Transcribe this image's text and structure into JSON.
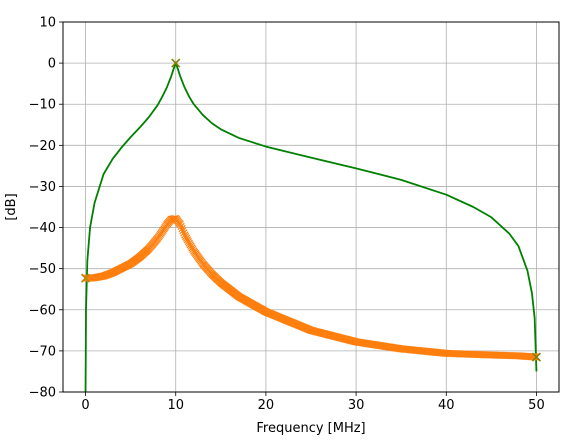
{
  "chart_data": {
    "type": "line",
    "xlabel": "Frequency [MHz]",
    "ylabel": "[dB]",
    "xlim": [
      -2.5,
      52.5
    ],
    "ylim": [
      -80,
      10
    ],
    "x_ticks": [
      0,
      10,
      20,
      30,
      40,
      50
    ],
    "y_ticks": [
      10,
      0,
      -10,
      -20,
      -30,
      -40,
      -50,
      -60,
      -70,
      -80
    ],
    "grid": true,
    "series": [
      {
        "style": "line",
        "color": "#008000",
        "x": [
          0,
          0.05,
          0.2,
          0.5,
          1,
          2,
          3,
          4,
          5,
          6,
          7,
          8,
          8.5,
          9,
          9.5,
          9.8,
          10,
          10.2,
          10.5,
          11,
          11.5,
          12,
          13,
          14,
          15,
          17,
          20,
          25,
          30,
          35,
          40,
          43,
          45,
          47,
          48,
          49,
          49.5,
          49.8,
          50
        ],
        "y": [
          -80,
          -60,
          -48,
          -40,
          -34,
          -27,
          -23.3,
          -20.5,
          -18,
          -15.7,
          -13.2,
          -10.2,
          -8.2,
          -6,
          -3.2,
          -1.2,
          0,
          -1.2,
          -3.2,
          -6,
          -8.2,
          -10,
          -12.6,
          -14.6,
          -16.1,
          -18.2,
          -20.3,
          -23,
          -25.6,
          -28.4,
          -32,
          -35,
          -37.5,
          -41.5,
          -44.5,
          -50.5,
          -56,
          -62,
          -75
        ]
      },
      {
        "style": "cross",
        "color": "#ff7f0e",
        "x": [
          0,
          0.5,
          1,
          2,
          3,
          4,
          5,
          6,
          7,
          8,
          8.5,
          9,
          9.5,
          10,
          10.5,
          11,
          11.5,
          12,
          13,
          14,
          15,
          17,
          20,
          25,
          30,
          35,
          40,
          45,
          48,
          50
        ],
        "y": [
          -52.3,
          -52.3,
          -52.2,
          -51.8,
          -51,
          -49.9,
          -48.8,
          -47.2,
          -45.2,
          -42.6,
          -41,
          -39.3,
          -38,
          -37.8,
          -39.2,
          -41.8,
          -43.8,
          -45.7,
          -48.8,
          -51.3,
          -53.4,
          -56.8,
          -60.5,
          -65,
          -67.8,
          -69.5,
          -70.6,
          -71,
          -71.2,
          -71.5
        ]
      }
    ],
    "markers": [
      {
        "x": 10,
        "y": 0,
        "color": "#808000"
      },
      {
        "x": 0,
        "y": -52.3,
        "color": "#b8860b"
      },
      {
        "x": 50,
        "y": -71.5,
        "color": "#808000"
      }
    ]
  }
}
